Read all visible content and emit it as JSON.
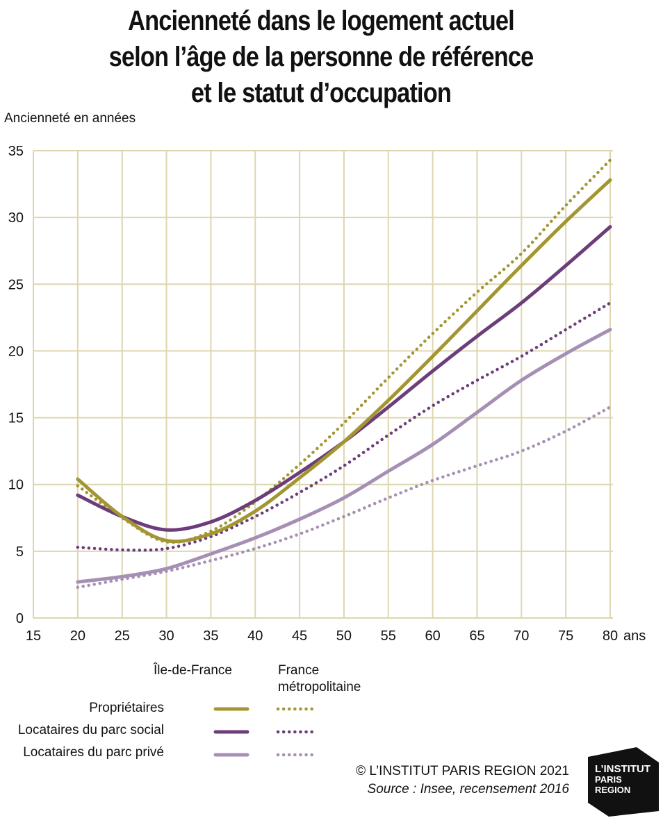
{
  "title_lines": [
    "Ancienneté dans le logement actuel",
    "selon l’âge de la personne de référence",
    "et le statut d’occupation"
  ],
  "legend": {
    "col_idf": "Île-de-France",
    "col_france_line1": "France",
    "col_france_line2": "métropolitaine",
    "rows": [
      "Propriétaires",
      "Locataires du parc social",
      "Locataires du parc privé"
    ]
  },
  "credit": {
    "copyright": "© L’INSTITUT PARIS REGION 2021",
    "source": "Source : Insee, recensement 2016"
  },
  "logo": {
    "line1": "L’INSTITUT",
    "line2": "PARIS",
    "line3": "REGION"
  },
  "colors": {
    "proprietaires": "#a39632",
    "social": "#6b3d7a",
    "prive": "#a68fb4",
    "grid": "#ddd6b0"
  },
  "chart_data": {
    "type": "line",
    "ylabel": "Ancienneté en années",
    "xunit": "ans",
    "xlim": [
      15,
      80
    ],
    "ylim": [
      0,
      35
    ],
    "xticks": [
      15,
      20,
      25,
      30,
      35,
      40,
      45,
      50,
      55,
      60,
      65,
      70,
      75,
      80
    ],
    "yticks": [
      0,
      5,
      10,
      15,
      20,
      25,
      30,
      35
    ],
    "grid": true,
    "x": [
      20,
      25,
      30,
      35,
      40,
      45,
      50,
      55,
      60,
      65,
      70,
      75,
      80
    ],
    "series": [
      {
        "name": "Propriétaires — Île-de-France",
        "group": "proprietaires",
        "style": "solid",
        "values": [
          10.4,
          7.6,
          5.8,
          6.3,
          8.0,
          10.5,
          13.2,
          16.3,
          19.6,
          23.0,
          26.4,
          29.7,
          32.8
        ]
      },
      {
        "name": "Propriétaires — France métropolitaine",
        "group": "proprietaires",
        "style": "dotted",
        "values": [
          9.9,
          7.5,
          5.7,
          6.5,
          8.7,
          11.5,
          14.6,
          18.0,
          21.3,
          24.4,
          27.3,
          30.9,
          34.3
        ]
      },
      {
        "name": "Locataires du parc social — Île-de-France",
        "group": "social",
        "style": "solid",
        "values": [
          9.2,
          7.6,
          6.6,
          7.2,
          8.8,
          10.9,
          13.2,
          15.8,
          18.5,
          21.1,
          23.6,
          26.4,
          29.3
        ]
      },
      {
        "name": "Locataires du parc social — France métropolitaine",
        "group": "social",
        "style": "dotted",
        "values": [
          5.3,
          5.1,
          5.2,
          6.1,
          7.6,
          9.4,
          11.4,
          13.7,
          15.9,
          17.8,
          19.6,
          21.6,
          23.6
        ]
      },
      {
        "name": "Locataires du parc privé — Île-de-France",
        "group": "prive",
        "style": "solid",
        "values": [
          2.7,
          3.1,
          3.7,
          4.8,
          6.0,
          7.4,
          9.0,
          11.0,
          13.0,
          15.4,
          17.8,
          19.8,
          21.6
        ]
      },
      {
        "name": "Locataires du parc privé — France métropolitaine",
        "group": "prive",
        "style": "dotted",
        "values": [
          2.3,
          2.9,
          3.5,
          4.3,
          5.2,
          6.3,
          7.6,
          9.0,
          10.3,
          11.4,
          12.5,
          14.0,
          15.8
        ]
      }
    ]
  }
}
